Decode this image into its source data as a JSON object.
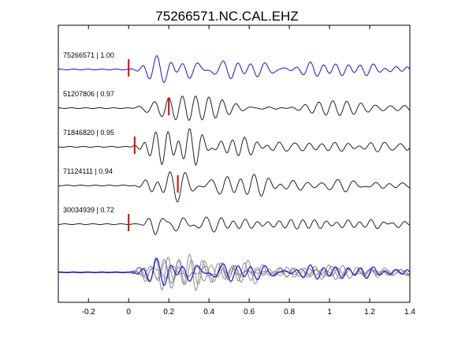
{
  "chart_data": {
    "type": "line",
    "title": "75266571.NC.CAL.EHZ",
    "xlabel": "",
    "ylabel": "",
    "xlim": [
      -0.35,
      1.4
    ],
    "x_ticks": [
      {
        "value": -0.2,
        "label": "-0.2"
      },
      {
        "value": 0,
        "label": "0"
      },
      {
        "value": 0.2,
        "label": "0.2"
      },
      {
        "value": 0.4,
        "label": "0.4"
      },
      {
        "value": 0.6,
        "label": "0.6"
      },
      {
        "value": 0.8,
        "label": "0.8"
      },
      {
        "value": 1.0,
        "label": "1"
      },
      {
        "value": 1.2,
        "label": "1.2"
      },
      {
        "value": 1.4,
        "label": "1.4"
      }
    ],
    "grid": false,
    "colors": {
      "reference": "#1515d6",
      "trace": "#222222",
      "pick": "#e00000",
      "overlay_gray": "#8c8c8c",
      "axes": "#000000"
    },
    "traces": [
      {
        "label": "75266571 | 1.00",
        "pick_time": 0.0,
        "color": "#1515d6",
        "onset": 0.0,
        "seed": 1
      },
      {
        "label": "51207806 | 0.97",
        "pick_time": 0.2,
        "color": "#222222",
        "onset": 0.02,
        "seed": 2
      },
      {
        "label": "71846820 | 0.95",
        "pick_time": 0.03,
        "color": "#222222",
        "onset": 0.0,
        "seed": 3
      },
      {
        "label": "71124111 | 0.94",
        "pick_time": 0.245,
        "color": "#222222",
        "onset": 0.03,
        "seed": 4
      },
      {
        "label": "30034939 | 0.72",
        "pick_time": 0.0,
        "color": "#222222",
        "onset": 0.05,
        "seed": 5
      }
    ],
    "overlay": {
      "description_free": true
    }
  }
}
